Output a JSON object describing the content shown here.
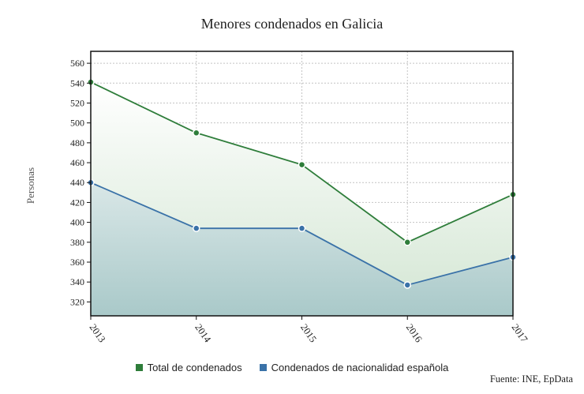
{
  "chart_data": {
    "type": "area",
    "title": "Menores condenados en Galicia",
    "xlabel": "",
    "ylabel": "Personas",
    "categories": [
      "2013",
      "2014",
      "2015",
      "2016",
      "2017"
    ],
    "ylim": [
      306,
      572
    ],
    "yticks": [
      320,
      340,
      360,
      380,
      400,
      420,
      440,
      460,
      480,
      500,
      520,
      540,
      560
    ],
    "grid": true,
    "legend_position": "bottom",
    "source": "Fuente: INE, EpData",
    "series": [
      {
        "name": "Total de condenados",
        "values": [
          541,
          490,
          458,
          380,
          428
        ],
        "color": "#2e7d3a"
      },
      {
        "name": "Condenados de nacionalidad española",
        "values": [
          440,
          394,
          394,
          337,
          365
        ],
        "color": "#3a72a8"
      }
    ]
  }
}
